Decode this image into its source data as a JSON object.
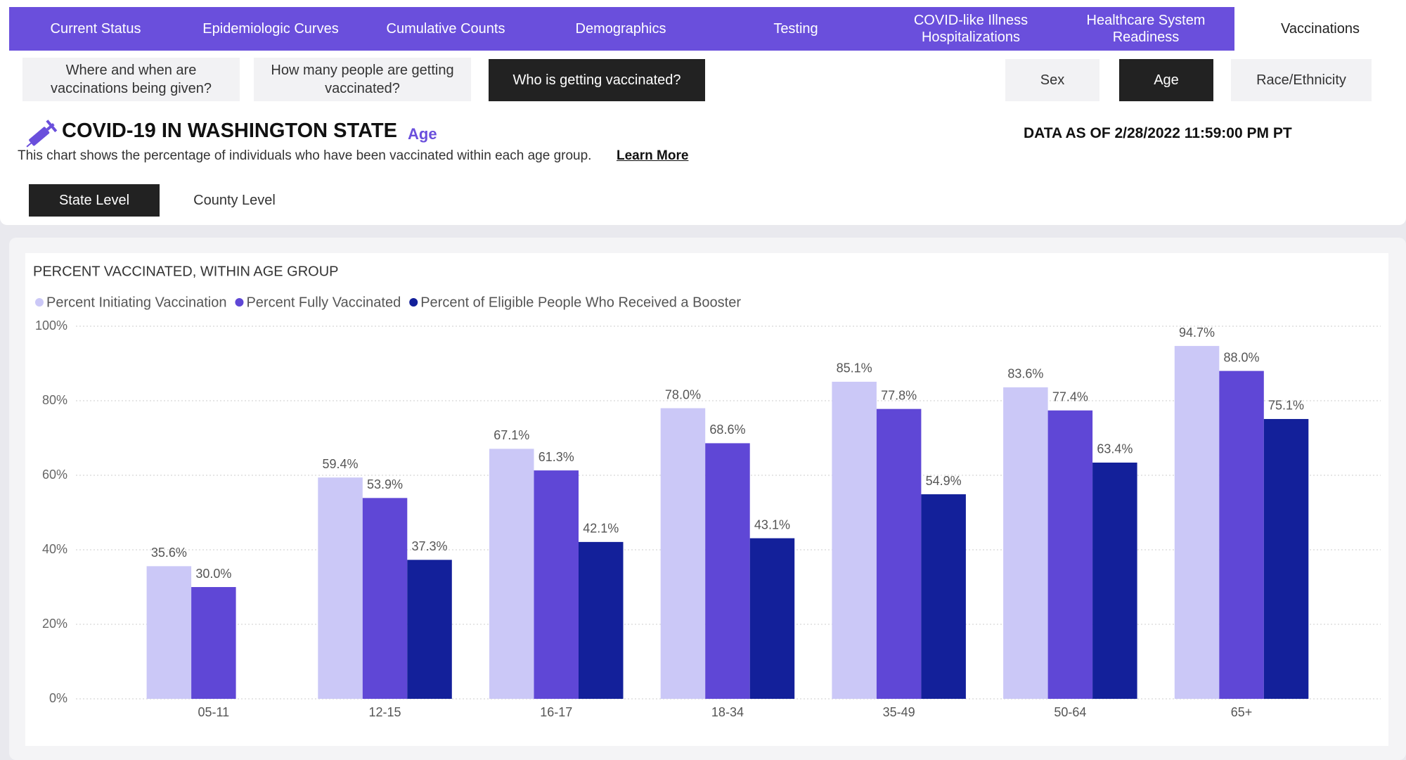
{
  "nav": {
    "tabs": [
      "Current Status",
      "Epidemiologic Curves",
      "Cumulative Counts",
      "Demographics",
      "Testing",
      "COVID-like Illness Hospitalizations",
      "Healthcare System Readiness",
      "Vaccinations"
    ]
  },
  "subnav": {
    "questions": [
      "Where and when are vaccinations being given?",
      "How many people are getting vaccinated?",
      "Who is getting vaccinated?"
    ],
    "filters": [
      "Sex",
      "Age",
      "Race/Ethnicity"
    ]
  },
  "header": {
    "title": "COVID-19 IN WASHINGTON STATE",
    "tag": "Age",
    "description": "This chart shows the percentage of individuals who have been vaccinated within each age group.",
    "link": "Learn More",
    "data_as_of": "DATA AS OF 2/28/2022 11:59:00 PM PT",
    "levels": [
      "State Level",
      "County Level"
    ]
  },
  "chart_data": {
    "type": "bar",
    "title": "PERCENT VACCINATED, WITHIN AGE GROUP",
    "categories": [
      "05-11",
      "12-15",
      "16-17",
      "18-34",
      "35-49",
      "50-64",
      "65+"
    ],
    "series": [
      {
        "name": "Percent Initiating Vaccination",
        "color": "#cbc8f7",
        "values": [
          35.6,
          59.4,
          67.1,
          78.0,
          85.1,
          83.6,
          94.7
        ],
        "value_labels": [
          "35.6%",
          "59.4%",
          "67.1%",
          "78.0%",
          "85.1%",
          "83.6%",
          "94.7%"
        ]
      },
      {
        "name": "Percent Fully Vaccinated",
        "color": "#5f47d6",
        "values": [
          30.0,
          53.9,
          61.3,
          68.6,
          77.8,
          77.4,
          88.0
        ],
        "value_labels": [
          "30.0%",
          "53.9%",
          "61.3%",
          "68.6%",
          "77.8%",
          "77.4%",
          "88.0%"
        ]
      },
      {
        "name": "Percent of Eligible People Who Received a Booster",
        "color": "#13209a",
        "values": [
          null,
          37.3,
          42.1,
          43.1,
          54.9,
          63.4,
          75.1
        ],
        "value_labels": [
          null,
          "37.3%",
          "42.1%",
          "43.1%",
          "54.9%",
          "63.4%",
          "75.1%"
        ]
      }
    ],
    "ylim": [
      0,
      100
    ],
    "yticks": [
      {
        "value": 0,
        "label": "0%"
      },
      {
        "value": 20,
        "label": "20%"
      },
      {
        "value": 40,
        "label": "40%"
      },
      {
        "value": 60,
        "label": "60%"
      },
      {
        "value": 80,
        "label": "80%"
      },
      {
        "value": 100,
        "label": "100%"
      }
    ],
    "grid": true,
    "legend": "top-left"
  }
}
